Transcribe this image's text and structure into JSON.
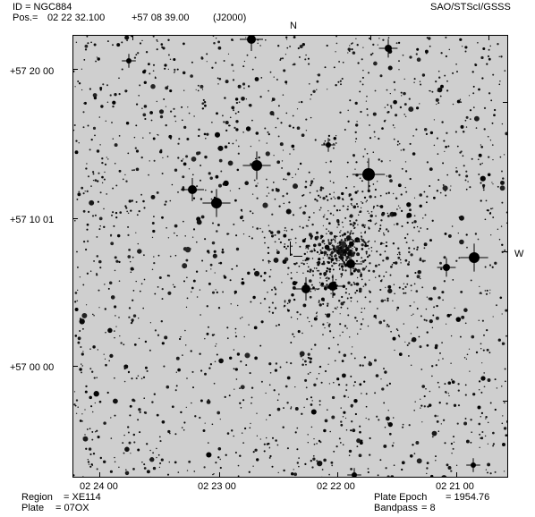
{
  "header": {
    "id_label": "ID",
    "id_value": "= NGC884",
    "pos_label": "Pos.=",
    "ra": "02 22 32.100",
    "dec": "+57 08 39.00",
    "epoch": "(J2000)",
    "source": "SAO/STScI/GSSS"
  },
  "compass": {
    "north": "N",
    "west": "W"
  },
  "dec_labels": [
    "+57 20 00",
    "+57 10 01",
    "+57 00 00"
  ],
  "ra_labels": [
    "02 24 00",
    "02 23 00",
    "02 22 00",
    "02 21 00"
  ],
  "footer": {
    "region_label": "Region",
    "region_value": "= XE114",
    "plate_label": "Plate",
    "plate_value": "= 07OX",
    "plate_epoch_label": "Plate Epoch",
    "plate_epoch_value": "= 1954.76",
    "bandpass_label": "Bandpass",
    "bandpass_value": "= 8"
  }
}
